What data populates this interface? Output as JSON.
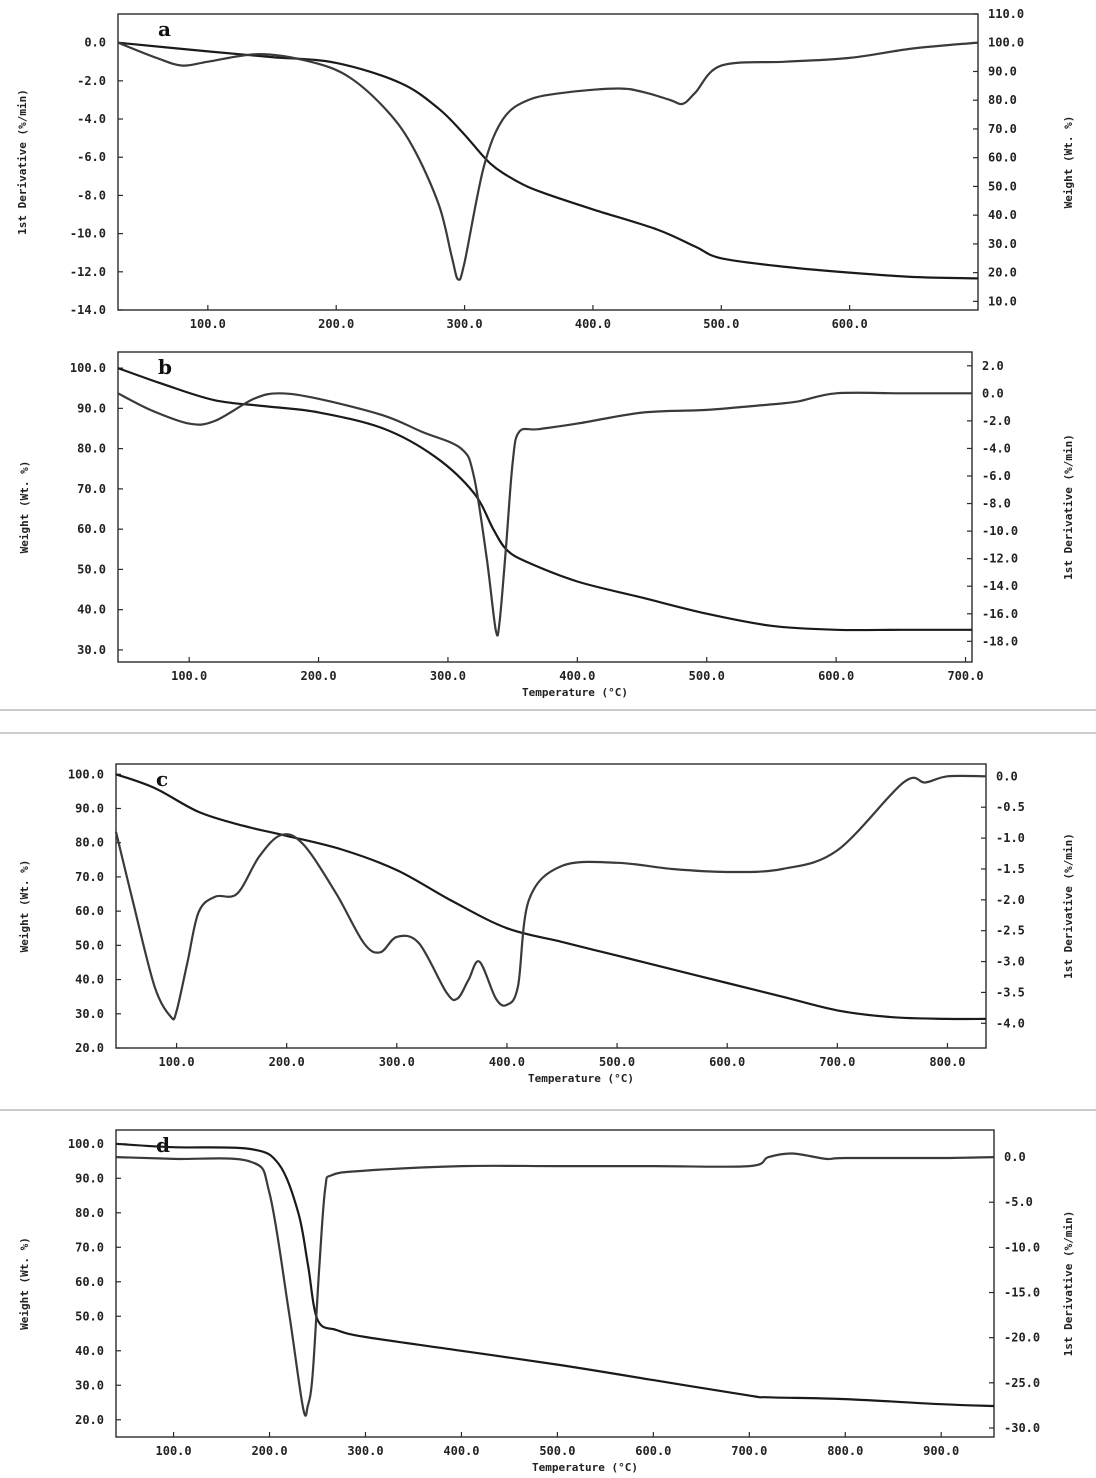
{
  "chart_data": [
    {
      "panel": "a",
      "type": "line",
      "xlabel": "",
      "ylabel_left": "1st Derivative (%/min)",
      "ylabel_right": "Weight (Wt. %)",
      "xlim": [
        30,
        700
      ],
      "x_ticks": [
        "100.0",
        "200.0",
        "300.0",
        "400.0",
        "500.0",
        "600.0"
      ],
      "y_left_lim": [
        -14,
        1.5
      ],
      "y_left_ticks": [
        "0.0",
        "-2.0",
        "-4.0",
        "-6.0",
        "-8.0",
        "-10.0",
        "-12.0",
        "-14.0"
      ],
      "y_right_lim": [
        7,
        110
      ],
      "y_right_ticks": [
        "110.0",
        "100.0",
        "90.0",
        "80.0",
        "70.0",
        "60.0",
        "50.0",
        "40.0",
        "30.0",
        "20.0",
        "10.0"
      ],
      "series": [
        {
          "axis": "right",
          "kind": "weight",
          "x": [
            30,
            100,
            150,
            200,
            250,
            280,
            300,
            320,
            340,
            360,
            400,
            450,
            480,
            500,
            550,
            600,
            650,
            700
          ],
          "y": [
            100,
            97,
            95,
            93,
            86,
            77,
            68,
            58,
            52,
            48,
            42,
            35,
            29,
            25,
            22,
            20,
            18.5,
            18
          ]
        },
        {
          "axis": "left",
          "kind": "derivative",
          "x": [
            30,
            60,
            80,
            100,
            140,
            180,
            210,
            240,
            260,
            280,
            290,
            295,
            300,
            315,
            330,
            350,
            380,
            420,
            440,
            460,
            470,
            480,
            500,
            550,
            600,
            650,
            700
          ],
          "y": [
            0,
            -0.8,
            -1.2,
            -1.0,
            -0.6,
            -1.0,
            -1.8,
            -3.6,
            -5.5,
            -8.5,
            -11.2,
            -12.4,
            -11.5,
            -6.5,
            -4.0,
            -3.0,
            -2.6,
            -2.4,
            -2.6,
            -3.0,
            -3.2,
            -2.6,
            -1.2,
            -1.0,
            -0.8,
            -0.3,
            0
          ]
        }
      ]
    },
    {
      "panel": "b",
      "type": "line",
      "xlabel": "Temperature (°C)",
      "ylabel_left": "Weight (Wt. %)",
      "ylabel_right": "1st Derivative (%/min)",
      "xlim": [
        45,
        705
      ],
      "x_ticks": [
        "100.0",
        "200.0",
        "300.0",
        "400.0",
        "500.0",
        "600.0",
        "700.0"
      ],
      "y_left_lim": [
        27,
        104
      ],
      "y_left_ticks": [
        "100.0",
        "90.0",
        "80.0",
        "70.0",
        "60.0",
        "50.0",
        "40.0",
        "30.0"
      ],
      "y_right_lim": [
        -19.5,
        3
      ],
      "y_right_ticks": [
        "2.0",
        "0.0",
        "-2.0",
        "-4.0",
        "-6.0",
        "-8.0",
        "-10.0",
        "-12.0",
        "-14.0",
        "-16.0",
        "-18.0"
      ],
      "series": [
        {
          "axis": "left",
          "kind": "weight",
          "x": [
            45,
            80,
            120,
            160,
            200,
            250,
            290,
            320,
            335,
            345,
            360,
            400,
            450,
            500,
            550,
            600,
            650,
            705
          ],
          "y": [
            100,
            96,
            92,
            90.5,
            89,
            85,
            78,
            69,
            60,
            55,
            52,
            47,
            43,
            39,
            36,
            35,
            35,
            35
          ]
        },
        {
          "axis": "right",
          "kind": "derivative",
          "x": [
            45,
            70,
            100,
            120,
            150,
            170,
            200,
            250,
            280,
            310,
            320,
            330,
            337,
            340,
            345,
            350,
            355,
            370,
            400,
            450,
            500,
            550,
            570,
            600,
            650,
            705
          ],
          "y": [
            0,
            -1.2,
            -2.2,
            -2.0,
            -0.4,
            0.0,
            -0.4,
            -1.6,
            -2.8,
            -4.0,
            -6.0,
            -12.0,
            -17.2,
            -16.5,
            -11.0,
            -5.0,
            -2.8,
            -2.6,
            -2.2,
            -1.4,
            -1.2,
            -0.8,
            -0.6,
            0.0,
            0.0,
            0.0
          ]
        }
      ]
    },
    {
      "panel": "c",
      "type": "line",
      "xlabel": "Temperature (°C)",
      "ylabel_left": "Weight (Wt. %)",
      "ylabel_right": "1st Derivative (%/min)",
      "xlim": [
        45,
        835
      ],
      "x_ticks": [
        "100.0",
        "200.0",
        "300.0",
        "400.0",
        "500.0",
        "600.0",
        "700.0",
        "800.0"
      ],
      "y_left_lim": [
        20,
        103
      ],
      "y_left_ticks": [
        "100.0",
        "90.0",
        "80.0",
        "70.0",
        "60.0",
        "50.0",
        "40.0",
        "30.0",
        "20.0"
      ],
      "y_right_lim": [
        -4.4,
        0.2
      ],
      "y_right_ticks": [
        "0.0",
        "-0.5",
        "-1.0",
        "-1.5",
        "-2.0",
        "-2.5",
        "-3.0",
        "-3.5",
        "-4.0"
      ],
      "series": [
        {
          "axis": "left",
          "kind": "weight",
          "x": [
            45,
            80,
            120,
            160,
            200,
            250,
            300,
            350,
            400,
            450,
            500,
            550,
            600,
            650,
            700,
            750,
            800,
            835
          ],
          "y": [
            100,
            96,
            89,
            85,
            82,
            78,
            72,
            63,
            55,
            51,
            47,
            43,
            39,
            35,
            31,
            29,
            28.5,
            28.5
          ]
        },
        {
          "axis": "right",
          "kind": "derivative",
          "x": [
            45,
            60,
            80,
            95,
            100,
            110,
            120,
            135,
            155,
            175,
            195,
            215,
            245,
            270,
            285,
            300,
            320,
            345,
            355,
            365,
            375,
            390,
            400,
            410,
            420,
            450,
            500,
            550,
            600,
            650,
            700,
            760,
            780,
            800,
            835
          ],
          "y": [
            -0.9,
            -2.0,
            -3.4,
            -3.9,
            -3.8,
            -3.0,
            -2.2,
            -1.95,
            -1.9,
            -1.3,
            -0.95,
            -1.1,
            -1.9,
            -2.7,
            -2.85,
            -2.6,
            -2.7,
            -3.5,
            -3.6,
            -3.3,
            -3.0,
            -3.6,
            -3.7,
            -3.4,
            -2.0,
            -1.45,
            -1.4,
            -1.5,
            -1.55,
            -1.5,
            -1.2,
            -0.1,
            -0.1,
            0.0,
            0.0
          ]
        }
      ]
    },
    {
      "panel": "d",
      "type": "line",
      "xlabel": "Temperature (°C)",
      "ylabel_left": "Weight (Wt. %)",
      "ylabel_right": "1st Derivative (%/min)",
      "xlim": [
        40,
        955
      ],
      "x_ticks": [
        "100.0",
        "200.0",
        "300.0",
        "400.0",
        "500.0",
        "600.0",
        "700.0",
        "800.0",
        "900.0"
      ],
      "y_left_lim": [
        15,
        104
      ],
      "y_left_ticks": [
        "100.0",
        "90.0",
        "80.0",
        "70.0",
        "60.0",
        "50.0",
        "40.0",
        "30.0",
        "20.0"
      ],
      "y_right_lim": [
        -31,
        3
      ],
      "y_right_ticks": [
        "0.0",
        "-5.0",
        "-10.0",
        "-15.0",
        "-20.0",
        "-25.0",
        "-30.0"
      ],
      "series": [
        {
          "axis": "left",
          "kind": "weight",
          "x": [
            40,
            100,
            180,
            210,
            230,
            240,
            250,
            270,
            300,
            400,
            500,
            600,
            700,
            720,
            800,
            900,
            955
          ],
          "y": [
            100,
            99,
            98.5,
            94,
            80,
            65,
            49,
            46,
            44,
            40,
            36,
            31.5,
            27,
            26.5,
            26,
            24.5,
            24
          ]
        },
        {
          "axis": "right",
          "kind": "derivative",
          "x": [
            40,
            100,
            180,
            200,
            220,
            235,
            240,
            245,
            252,
            258,
            265,
            300,
            400,
            500,
            600,
            700,
            720,
            745,
            780,
            800,
            900,
            955
          ],
          "y": [
            0,
            -0.2,
            -0.5,
            -4.0,
            -17.0,
            -27.8,
            -27.5,
            -24.0,
            -12.0,
            -3.5,
            -2.0,
            -1.5,
            -1.0,
            -1.0,
            -1.0,
            -1.0,
            0.0,
            0.4,
            -0.2,
            -0.1,
            -0.1,
            0.0
          ]
        }
      ]
    }
  ]
}
